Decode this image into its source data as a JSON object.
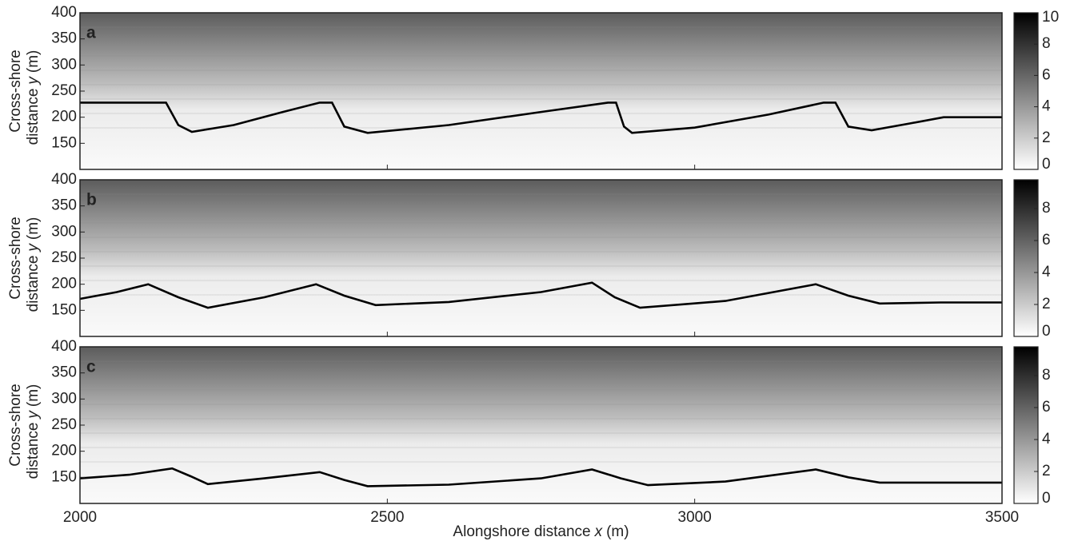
{
  "chart_data": [
    {
      "type": "line",
      "label": "a",
      "ylabel": [
        "Cross-shore",
        "distance",
        "y",
        "(m)"
      ],
      "x": [
        2000,
        2100,
        2140,
        2160,
        2182,
        2250,
        2330,
        2390,
        2410,
        2430,
        2468,
        2600,
        2750,
        2859,
        2872,
        2885,
        2898,
        3000,
        3120,
        3210,
        3229,
        3250,
        3288,
        3350,
        3405,
        3500
      ],
      "values": [
        228,
        228,
        228,
        185,
        172,
        185,
        210,
        228,
        228,
        182,
        170,
        185,
        210,
        228,
        228,
        182,
        170,
        180,
        205,
        228,
        228,
        182,
        175,
        188,
        200,
        200
      ],
      "color": "#000000",
      "xlim": [
        2000,
        3500
      ],
      "xticks": [
        2000,
        2500,
        3000,
        3500
      ],
      "ylim": [
        100,
        400
      ],
      "yticks": [
        150,
        200,
        250,
        300,
        350,
        400
      ],
      "colorbar": {
        "lim": [
          0,
          10
        ],
        "ticks": [
          0,
          2,
          4,
          6,
          8,
          10
        ],
        "colormap": [
          "#ffffff",
          "#000000"
        ]
      }
    },
    {
      "type": "line",
      "label": "b",
      "ylabel": [
        "Cross-shore",
        "distance",
        "y",
        "(m)"
      ],
      "x": [
        2000,
        2060,
        2111,
        2160,
        2208,
        2300,
        2384,
        2430,
        2481,
        2600,
        2750,
        2833,
        2870,
        2911,
        3050,
        3197,
        3250,
        3301,
        3400,
        3500
      ],
      "values": [
        172,
        185,
        200,
        175,
        155,
        175,
        200,
        178,
        160,
        166,
        185,
        203,
        175,
        155,
        168,
        200,
        178,
        163,
        165,
        165
      ],
      "color": "#000000",
      "xlim": [
        2000,
        3500
      ],
      "xticks": [
        2000,
        2500,
        3000,
        3500
      ],
      "ylim": [
        100,
        400
      ],
      "yticks": [
        150,
        200,
        250,
        300,
        350,
        400
      ],
      "colorbar": {
        "lim": [
          0,
          9.8
        ],
        "ticks": [
          0,
          2,
          4,
          6,
          8
        ],
        "colormap": [
          "#ffffff",
          "#000000"
        ]
      }
    },
    {
      "type": "line",
      "label": "c",
      "ylabel": [
        "Cross-shore",
        "distance",
        "y",
        "(m)"
      ],
      "xlabel": [
        "Alongshore distance",
        "x",
        "(m)"
      ],
      "x": [
        2000,
        2080,
        2150,
        2180,
        2208,
        2300,
        2390,
        2430,
        2468,
        2600,
        2750,
        2833,
        2880,
        2924,
        3050,
        3197,
        3250,
        3301,
        3400,
        3500
      ],
      "values": [
        148,
        155,
        167,
        152,
        137,
        148,
        160,
        145,
        133,
        136,
        148,
        165,
        148,
        135,
        142,
        165,
        150,
        140,
        140,
        140
      ],
      "color": "#000000",
      "xlim": [
        2000,
        3500
      ],
      "xticks": [
        2000,
        2500,
        3000,
        3500
      ],
      "ylim": [
        100,
        400
      ],
      "yticks": [
        150,
        200,
        250,
        300,
        350,
        400
      ],
      "colorbar": {
        "lim": [
          0,
          9.8
        ],
        "ticks": [
          0,
          2,
          4,
          6,
          8
        ],
        "colormap": [
          "#ffffff",
          "#000000"
        ]
      }
    }
  ]
}
